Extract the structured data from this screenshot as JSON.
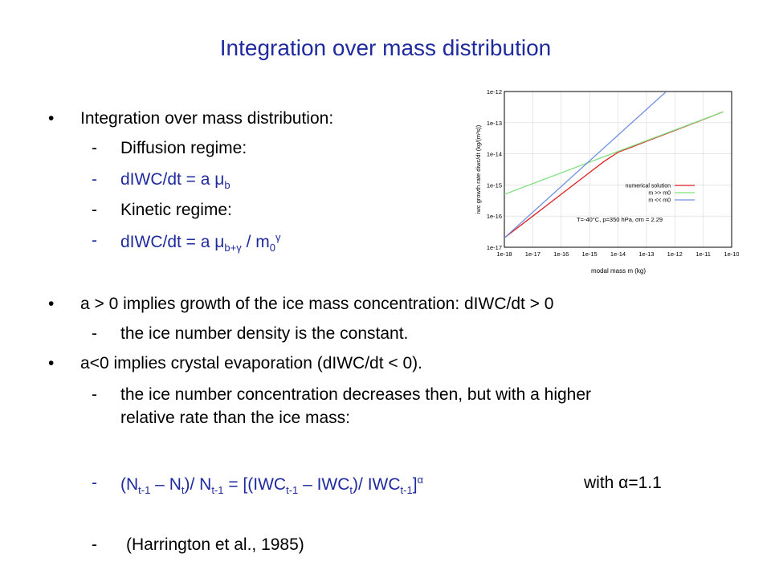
{
  "slide": {
    "title": "Integration over mass distribution",
    "bullet1": "Integration over mass distribution:",
    "sub1": "Diffusion regime:",
    "eq1_prefix": "dIWC/dt = a μ",
    "eq1_sub": "b",
    "sub2": "Kinetic regime:",
    "eq2_prefix": "dIWC/dt = a μ",
    "eq2_sub": "b+γ",
    "eq2_mid": " / m",
    "eq2_sub2": "0",
    "eq2_sup": "γ",
    "bullet2": "a > 0 implies growth of the ice mass concentration: dIWC/dt > 0",
    "sub3": "the ice number density is the constant.",
    "bullet3": "a<0 implies crystal evaporation (dIWC/dt < 0).",
    "sub4_line1": "the ice number concentration decreases then, but with a higher",
    "sub4_line2": "relative rate than the ice mass:",
    "eq3_p1": "(N",
    "eq3_s1": "t-1",
    "eq3_p2": " – N",
    "eq3_s2": "t",
    "eq3_p3": ")/ N",
    "eq3_s3": "t-1",
    "eq3_p4": " = [(IWC",
    "eq3_s4": "t-1",
    "eq3_p5": " – IWC",
    "eq3_s5": "t",
    "eq3_p6": ")/ IWC",
    "eq3_s6": "t-1",
    "eq3_p7": "]",
    "eq3_sup": "α",
    "eq3_with": "with α=1.1",
    "ref": "(Harrington et al., 1985)",
    "dash": "-",
    "bullet_glyph": "•"
  },
  "chart_data": {
    "type": "line",
    "xlabel": "modal mass m (kg)",
    "ylabel": "iwc growth rate diwc/dt (kg/(m³s))",
    "x_ticks": [
      "1e-18",
      "1e-17",
      "1e-16",
      "1e-15",
      "1e-14",
      "1e-13",
      "1e-12",
      "1e-11",
      "1e-10"
    ],
    "y_ticks": [
      "1e-12",
      "1e-13",
      "1e-14",
      "1e-15",
      "1e-16",
      "1e-17"
    ],
    "x_log_range": [
      -18,
      -10
    ],
    "y_log_range": [
      -17,
      -12
    ],
    "annotation": "T=-40°C, p=350 hPa, σm = 2.29",
    "grid": true,
    "legend_position": "right",
    "series": [
      {
        "name": "numerical solution",
        "color": "#e02020",
        "x": [
          -18,
          -17,
          -16,
          -15,
          -14.5,
          -14,
          -13.5,
          -13,
          -12,
          -11,
          -10.3
        ],
        "y": [
          -16.7,
          -16.0,
          -15.3,
          -14.6,
          -14.25,
          -13.95,
          -13.78,
          -13.6,
          -13.25,
          -12.9,
          -12.65
        ]
      },
      {
        "name": "m >> m0",
        "color": "#80e080",
        "x": [
          -18,
          -10.3
        ],
        "y": [
          -15.3,
          -12.65
        ]
      },
      {
        "name": "m << m0",
        "color": "#7090e0",
        "x": [
          -18,
          -12.3
        ],
        "y": [
          -16.7,
          -12.0
        ]
      }
    ]
  }
}
